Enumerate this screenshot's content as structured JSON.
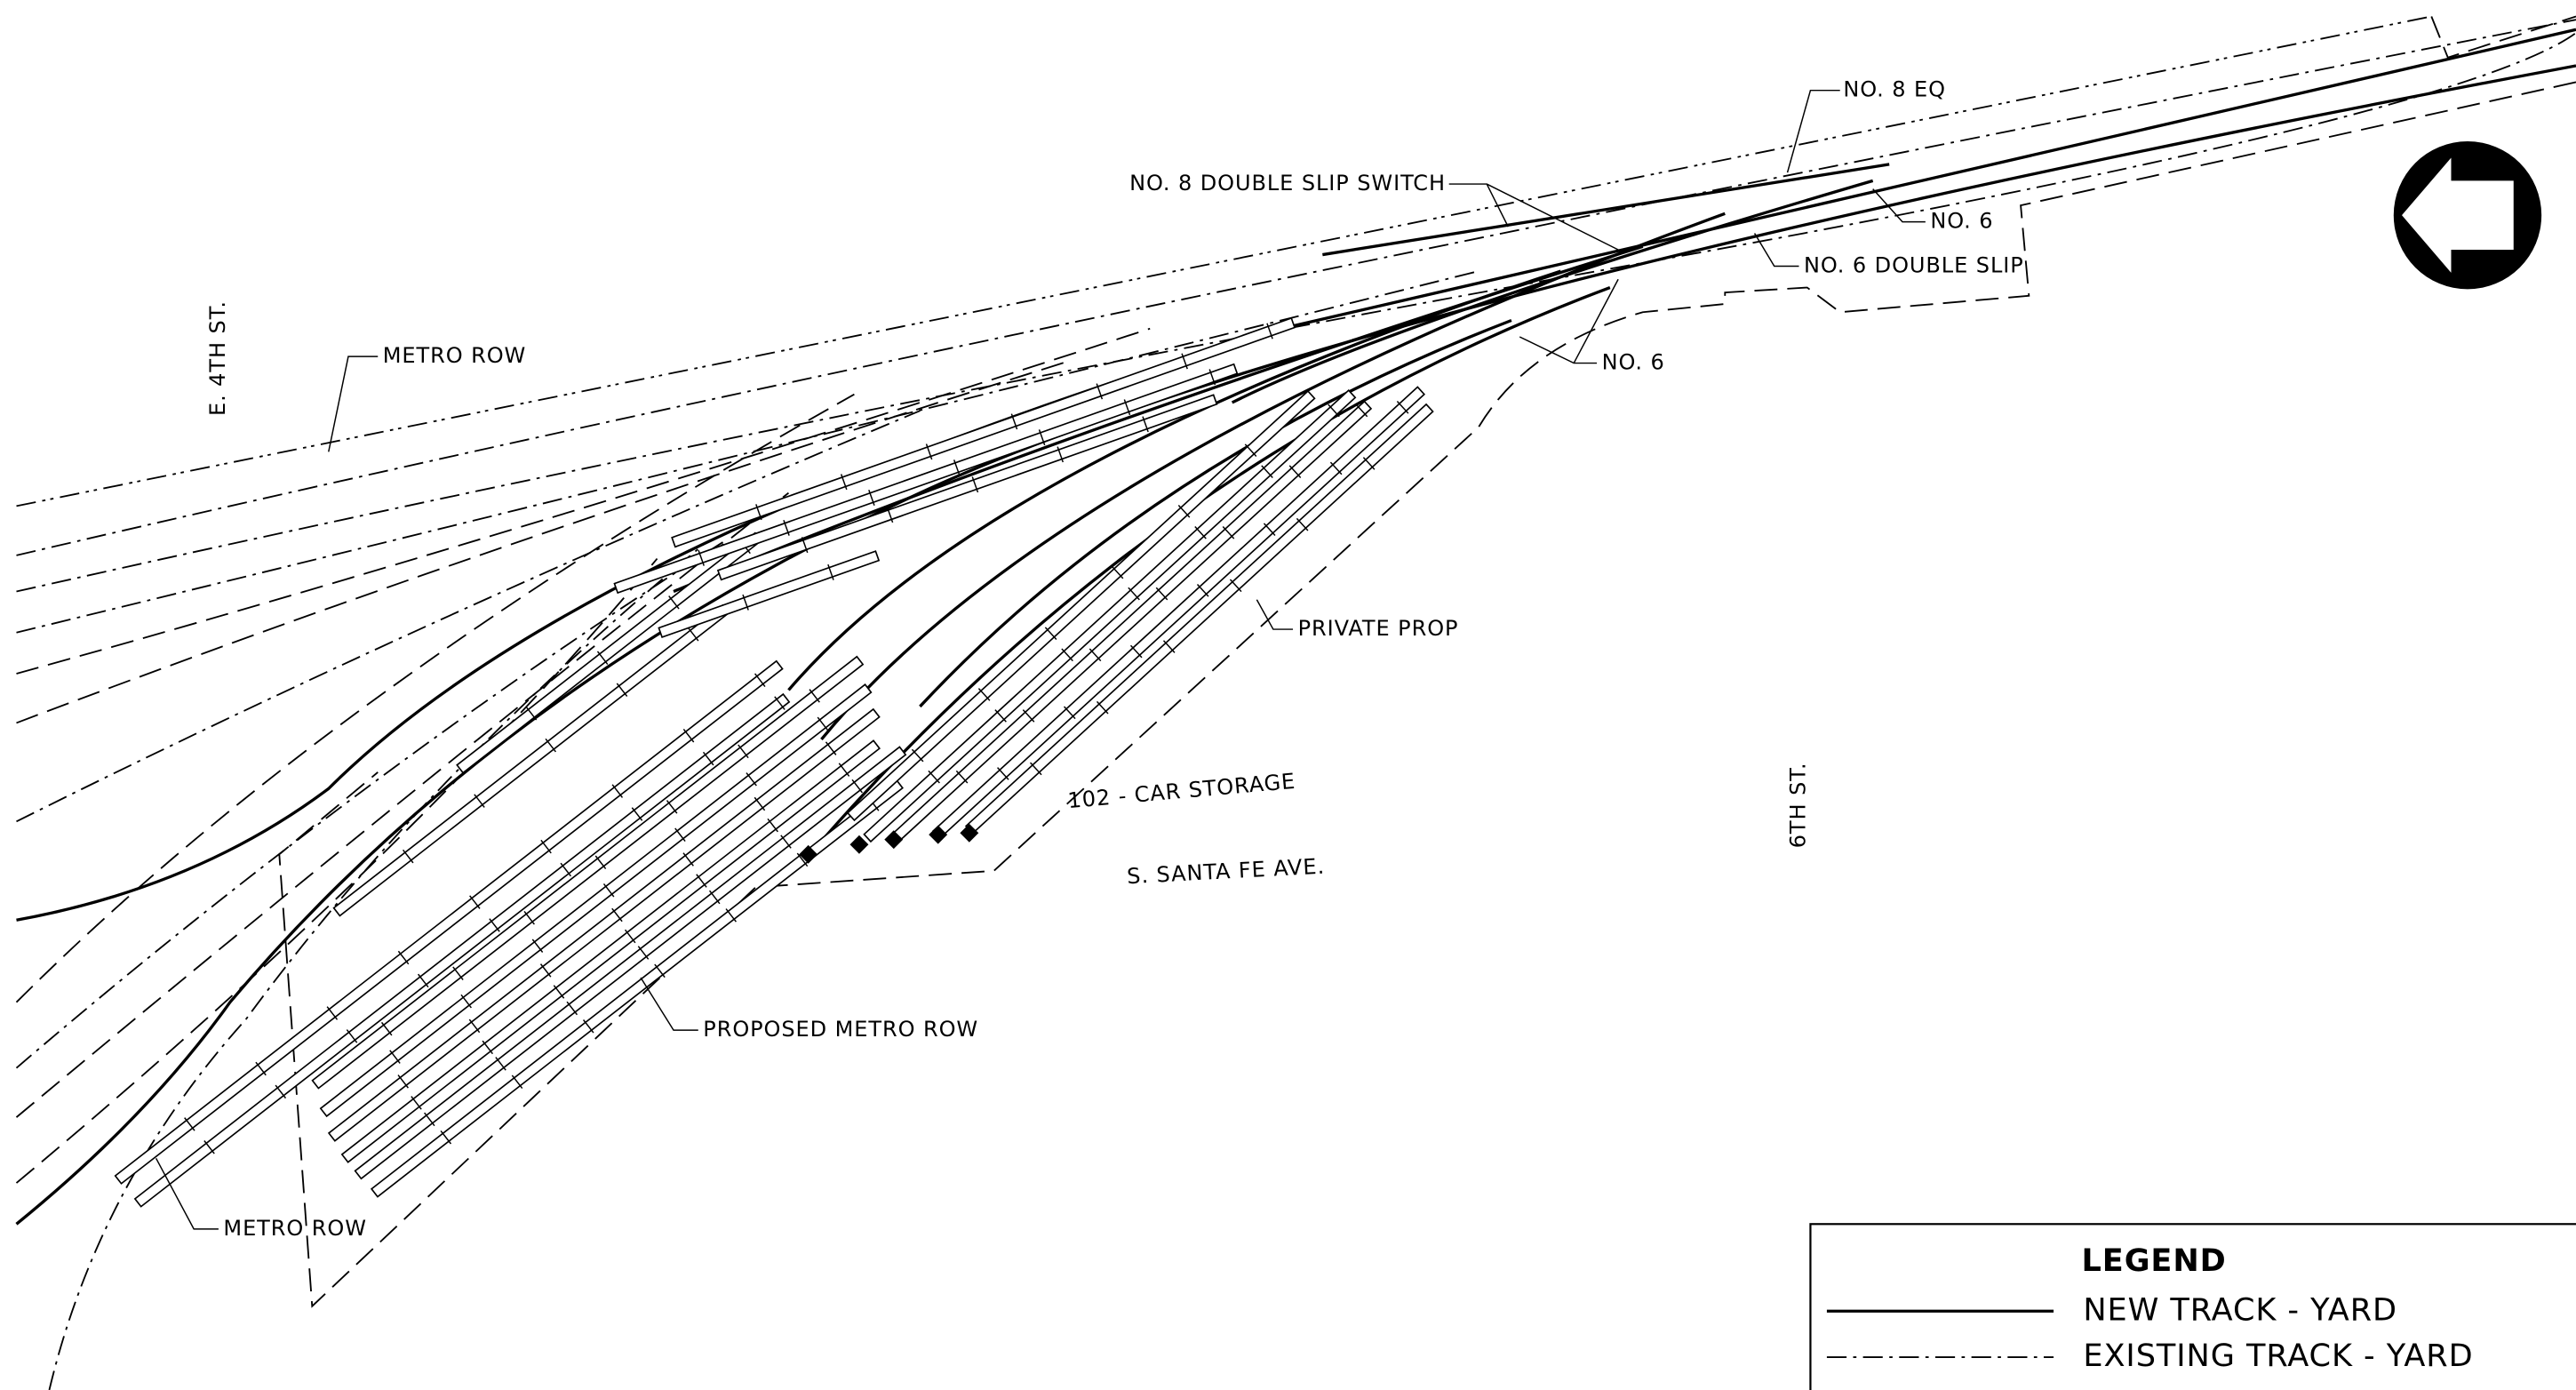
{
  "labels": {
    "metro_row_top": "METRO ROW",
    "e4th": "E. 4TH ST.",
    "no8_double_slip": "NO. 8 DOUBLE SLIP SWITCH",
    "no8_eq": "NO. 8 EQ",
    "no6_a": "NO. 6",
    "no6_double_slip": "NO. 6 DOUBLE SLIP",
    "no6_b": "NO. 6",
    "private_prop": "PRIVATE PROP",
    "car_storage": "102 - CAR STORAGE",
    "santa_fe": "S. SANTA FE AVE.",
    "sixth": "6TH ST.",
    "proposed_metro_row": "PROPOSED METRO ROW",
    "metro_row_bottom": "METRO ROW"
  },
  "legend": {
    "title": "LEGEND",
    "items": [
      "NEW TRACK - YARD",
      "EXISTING TRACK - YARD"
    ]
  }
}
